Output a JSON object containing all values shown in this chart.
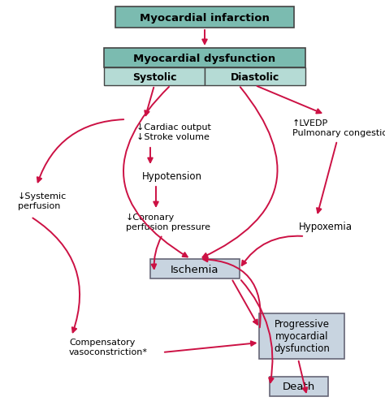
{
  "bg_color": "#ffffff",
  "arrow_color": "#cc1144",
  "box1_color": "#7bbbb0",
  "box2_top_color": "#7bbbb0",
  "box2_sub_color": "#b5dbd5",
  "box3_color": "#c8d4e0",
  "title": "Myocardial infarction",
  "dysfunction_title": "Myocardial dysfunction",
  "systolic": "Systolic",
  "diastolic": "Diastolic",
  "cardiac_output": "↓Cardiac output\n↓Stroke volume",
  "hypotension": "Hypotension",
  "coronary": "↓Coronary\nperfusion pressure",
  "systemic": "↓Systemic\nperfusion",
  "lvedp": "↑LVEDP\nPulmonary congestion",
  "hypoxemia": "Hypoxemia",
  "ischemia": "Ischemia",
  "compensatory": "Compensatory\nvasoconstriction*",
  "progressive": "Progressive\nmyocardial\ndysfunction",
  "death": "Death"
}
